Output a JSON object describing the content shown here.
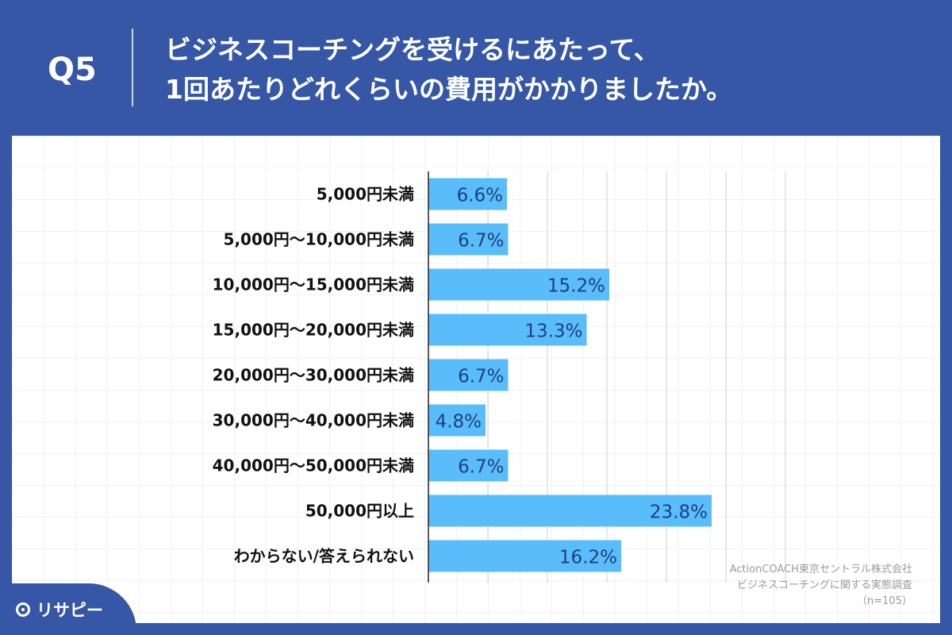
{
  "header": {
    "question_number": "Q5",
    "title_line1": "ビジネスコーチングを受けるにあたって、",
    "title_line2": "1回あたりどれくらいの費用がかかりましたか。"
  },
  "chart_data": {
    "type": "bar",
    "orientation": "horizontal",
    "categories": [
      "5,000円未満",
      "5,000円～10,000円未満",
      "10,000円～15,000円未満",
      "15,000円～20,000円未満",
      "20,000円～30,000円未満",
      "30,000円～40,000円未満",
      "40,000円～50,000円未満",
      "50,000円以上",
      "わからない/答えられない"
    ],
    "values": [
      6.6,
      6.7,
      15.2,
      13.3,
      6.7,
      4.8,
      6.7,
      23.8,
      16.2
    ],
    "data_labels": [
      "6.6%",
      "6.7%",
      "15.2%",
      "13.3%",
      "6.7%",
      "4.8%",
      "6.7%",
      "23.8%",
      "16.2%"
    ],
    "xlim": [
      0,
      30
    ],
    "grid": true,
    "bar_color": "#59bdfb",
    "label_color": "#1f3f7a"
  },
  "credit": {
    "line1": "ActionCOACH東京セントラル株式会社",
    "line2": "ビジネスコーチングに関する実態調査",
    "line3": "（n=105）"
  },
  "brand": {
    "name": "リサピー",
    "icon": "map-pin-icon",
    "color": "#3557a6"
  }
}
